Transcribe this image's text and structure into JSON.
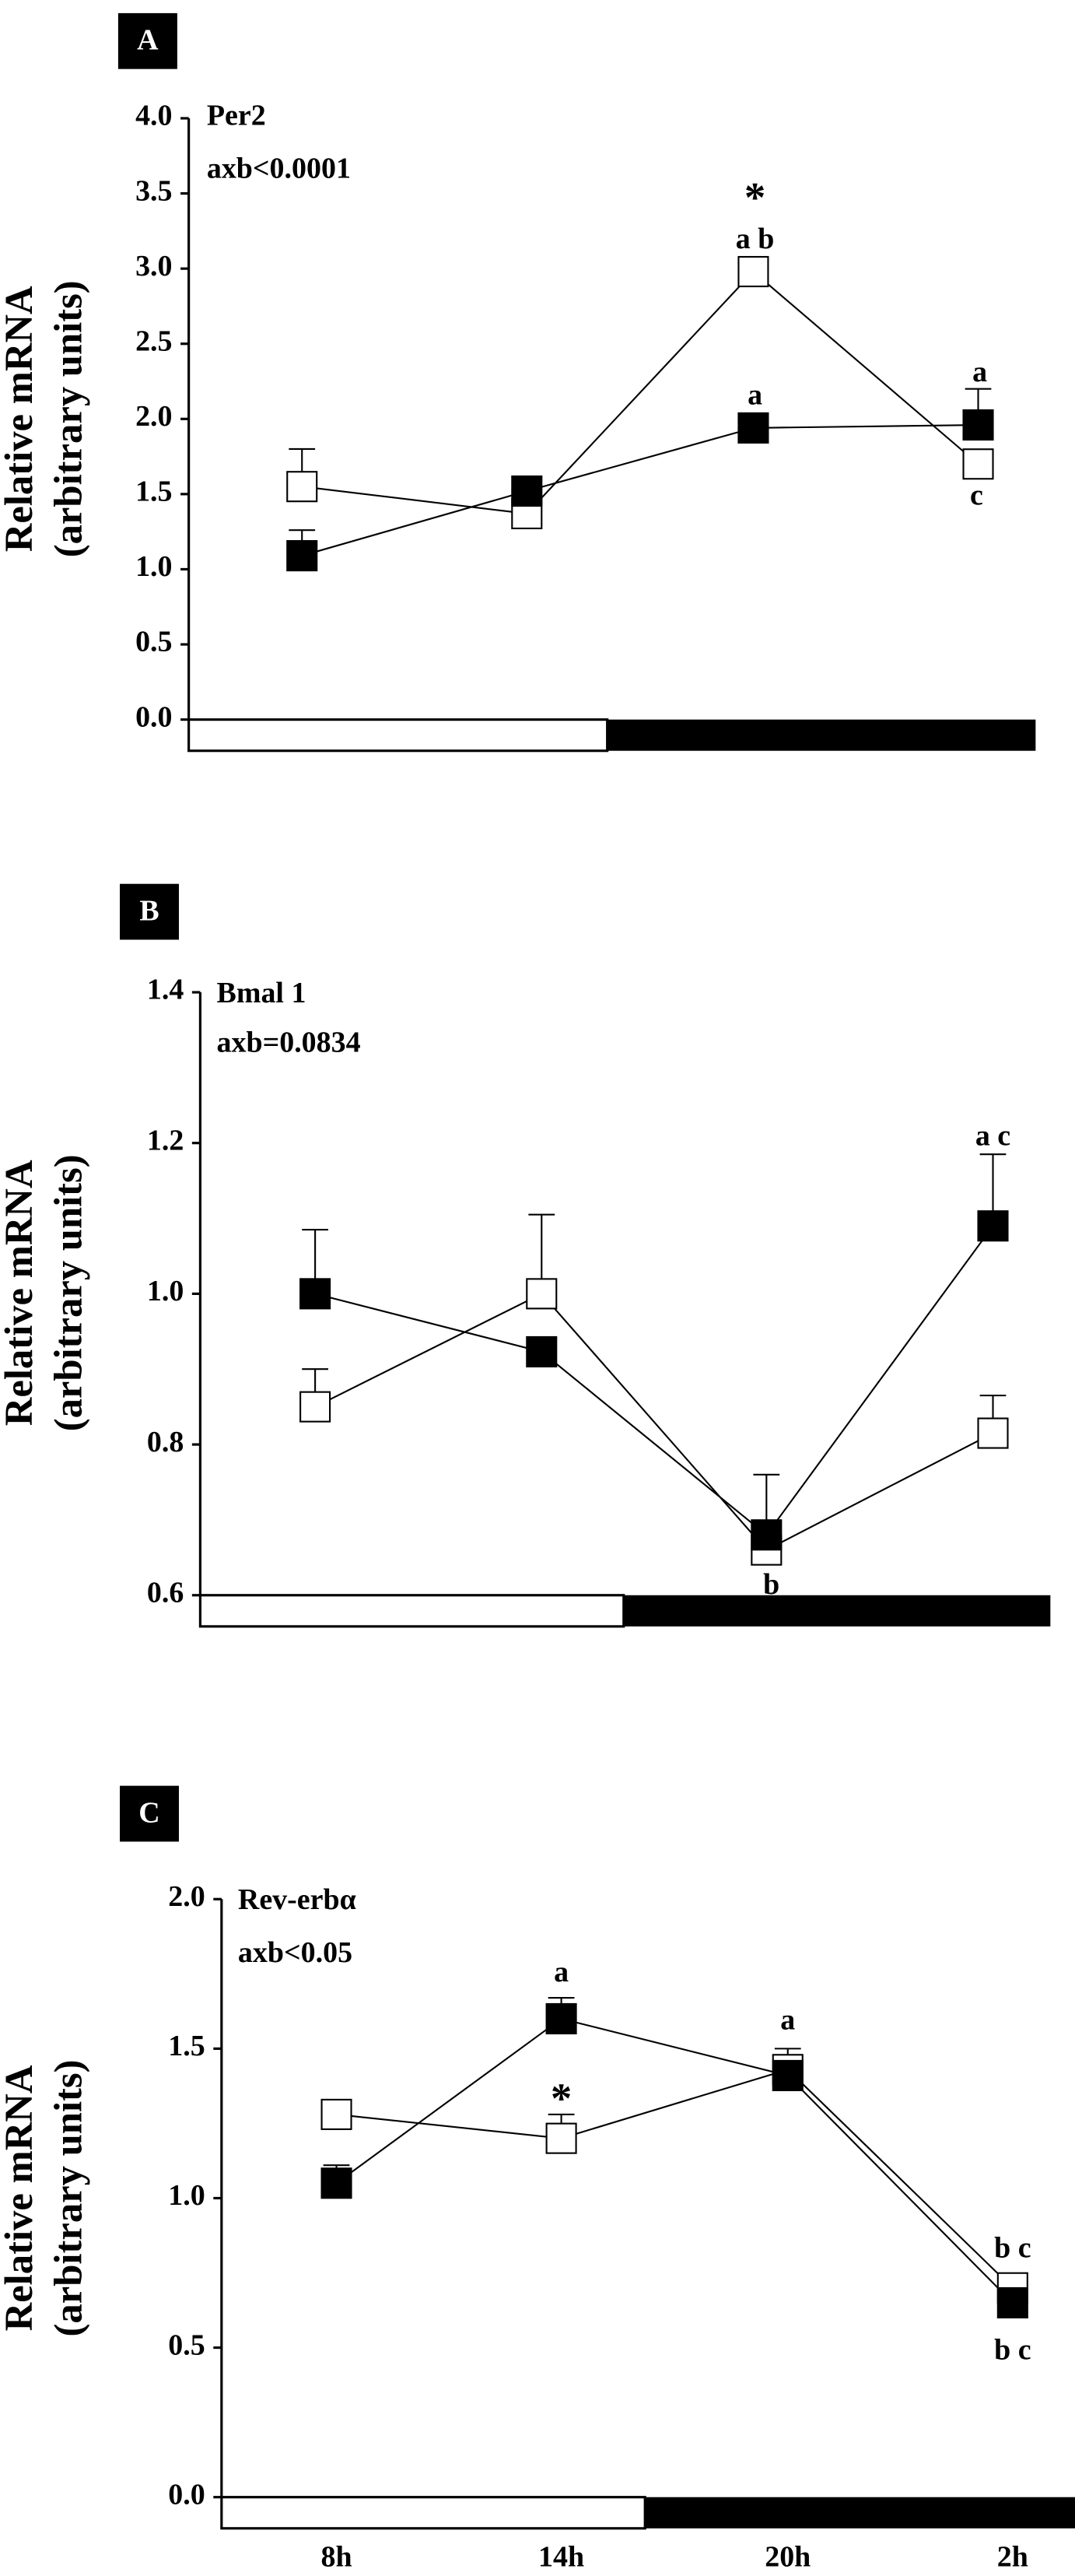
{
  "chart_data": [
    {
      "type": "line",
      "panel": "A",
      "title": "Per2",
      "subtitle": "axb<0.0001",
      "ylabel": "Relative mRNA",
      "ylabel2": "(arbitrary units)",
      "categories": [
        null,
        null,
        null,
        null
      ],
      "ylim": [
        0,
        4
      ],
      "yticks": [
        {
          "value": 0,
          "label": "0.0"
        },
        {
          "value": 0.5,
          "label": "0.5"
        },
        {
          "value": 1,
          "label": "1.0"
        },
        {
          "value": 1.5,
          "label": "1.5"
        },
        {
          "value": 2,
          "label": "2.0"
        },
        {
          "value": 2.5,
          "label": "2.5"
        },
        {
          "value": 3,
          "label": "3.0"
        },
        {
          "value": 3.5,
          "label": "3.5"
        },
        {
          "value": 4,
          "label": "4.0"
        }
      ],
      "series": [
        {
          "color": "#ffffff",
          "values": [
            1.55,
            1.37,
            2.98,
            1.7
          ],
          "errors": [
            0.25,
            null,
            0.08,
            null
          ]
        },
        {
          "color": "#000000",
          "values": [
            1.09,
            1.52,
            1.94,
            1.96
          ],
          "errors": [
            0.17,
            null,
            null,
            0.24
          ]
        }
      ],
      "annotations": [
        "*",
        "a b",
        "a",
        "a",
        "c"
      ]
    },
    {
      "type": "line",
      "panel": "B",
      "title": "Bmal 1",
      "subtitle": "axb=0.0834",
      "ylabel": "Relative mRNA",
      "ylabel2": "(arbitrary units)",
      "categories": [
        null,
        null,
        null,
        null
      ],
      "ylim": [
        0.6,
        1.4
      ],
      "yticks": [
        0.6,
        0.8,
        {
          "value": 1,
          "label": "1.0"
        },
        1.2,
        1.4
      ],
      "series": [
        {
          "color": "#ffffff",
          "values": [
            0.85,
            1.0,
            0.66,
            0.815
          ],
          "errors": [
            0.05,
            0.105,
            null,
            0.05
          ]
        },
        {
          "color": "#000000",
          "values": [
            1.0,
            0.923,
            0.68,
            1.09
          ],
          "errors": [
            0.085,
            null,
            0.08,
            0.095
          ]
        }
      ],
      "annotations": [
        "a c",
        "b"
      ]
    },
    {
      "type": "line",
      "panel": "C",
      "title": "Rev-erbα",
      "subtitle": "axb<0.05",
      "ylabel": "Relative mRNA",
      "ylabel2": "(arbitrary units)",
      "categories": [
        "8h",
        "14h",
        "20h",
        "2h"
      ],
      "ylim": [
        0,
        2
      ],
      "yticks": [
        {
          "value": 0,
          "label": "0.0"
        },
        0.5,
        {
          "value": 1,
          "label": "1.0"
        },
        1.5,
        {
          "value": 2,
          "label": "2.0"
        }
      ],
      "series": [
        {
          "color": "#ffffff",
          "values": [
            1.28,
            1.2,
            1.43,
            0.7
          ],
          "errors": [
            null,
            0.08,
            0.07,
            null
          ]
        },
        {
          "color": "#000000",
          "values": [
            1.05,
            1.6,
            1.41,
            0.65
          ],
          "errors": [
            0.06,
            0.07,
            null,
            null
          ]
        }
      ],
      "annotations": [
        "a",
        "*",
        "a",
        "b c",
        "b c"
      ]
    }
  ]
}
